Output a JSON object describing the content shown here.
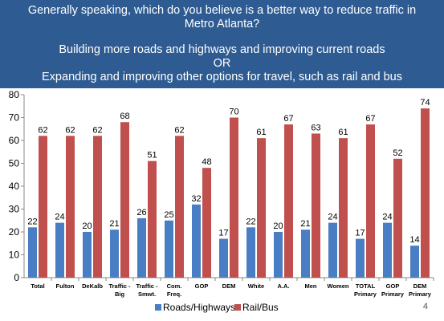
{
  "header": {
    "question_line1": "Generally speaking, which do you believe is a better way to reduce traffic in",
    "question_line2": "Metro Atlanta?",
    "option1": "Building more roads and highways and improving current roads",
    "or": "OR",
    "option2": "Expanding and improving other options for travel, such as rail and bus"
  },
  "page_number": "4",
  "colors": {
    "header_bg": "#2e5b91",
    "roads": "#4a7ec4",
    "rail": "#c0504d"
  },
  "chart_data": {
    "type": "bar",
    "categories": [
      [
        "Total"
      ],
      [
        "Fulton"
      ],
      [
        "DeKalb"
      ],
      [
        "Traffic -",
        "Big"
      ],
      [
        "Traffic -",
        "Smwt."
      ],
      [
        "Com.",
        "Freq."
      ],
      [
        "GOP"
      ],
      [
        "DEM"
      ],
      [
        "White"
      ],
      [
        "A.A."
      ],
      [
        "Men"
      ],
      [
        "Women"
      ],
      [
        "TOTAL",
        "Primary"
      ],
      [
        "GOP",
        "Primary"
      ],
      [
        "DEM",
        "Primary"
      ]
    ],
    "series": [
      {
        "name": "Roads/Highways",
        "values": [
          22,
          24,
          20,
          21,
          26,
          25,
          32,
          17,
          22,
          20,
          21,
          24,
          17,
          24,
          14
        ]
      },
      {
        "name": "Rail/Bus",
        "values": [
          62,
          62,
          62,
          68,
          51,
          62,
          48,
          70,
          61,
          67,
          63,
          61,
          67,
          52,
          74
        ]
      }
    ],
    "ylim": [
      0,
      80
    ],
    "yticks": [
      0,
      10,
      20,
      30,
      40,
      50,
      60,
      70,
      80
    ],
    "grid": false,
    "legend_position": "bottom"
  }
}
